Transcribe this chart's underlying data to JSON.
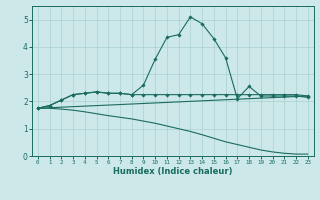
{
  "xlabel": "Humidex (Indice chaleur)",
  "background_color": "#cce8e8",
  "line_color": "#1a6b60",
  "grid_color": "#aad0d0",
  "xlim": [
    -0.5,
    23.5
  ],
  "ylim": [
    0,
    5.5
  ],
  "x_ticks": [
    0,
    1,
    2,
    3,
    4,
    5,
    6,
    7,
    8,
    9,
    10,
    11,
    12,
    13,
    14,
    15,
    16,
    17,
    18,
    19,
    20,
    21,
    22,
    23
  ],
  "y_ticks": [
    0,
    1,
    2,
    3,
    4,
    5
  ],
  "series": [
    {
      "x": [
        0,
        1,
        2,
        3,
        4,
        5,
        6,
        7,
        8,
        9,
        10,
        11,
        12,
        13,
        14,
        15,
        16,
        17,
        18,
        19,
        20,
        21,
        22,
        23
      ],
      "y": [
        1.75,
        1.85,
        2.05,
        2.25,
        2.3,
        2.35,
        2.3,
        2.3,
        2.25,
        2.6,
        3.55,
        4.35,
        4.45,
        5.1,
        4.85,
        4.3,
        3.6,
        2.1,
        2.55,
        2.2,
        2.2,
        2.2,
        2.2,
        2.15
      ],
      "marker": true
    },
    {
      "x": [
        0,
        1,
        2,
        3,
        4,
        5,
        6,
        7,
        8,
        9,
        10,
        11,
        12,
        13,
        14,
        15,
        16,
        17,
        18,
        19,
        20,
        21,
        22,
        23
      ],
      "y": [
        1.75,
        1.85,
        2.05,
        2.25,
        2.3,
        2.35,
        2.3,
        2.3,
        2.25,
        2.25,
        2.25,
        2.25,
        2.25,
        2.25,
        2.25,
        2.25,
        2.25,
        2.25,
        2.25,
        2.25,
        2.25,
        2.25,
        2.25,
        2.2
      ],
      "marker": true
    },
    {
      "x": [
        0,
        23
      ],
      "y": [
        1.75,
        2.2
      ],
      "marker": false
    },
    {
      "x": [
        0,
        1,
        2,
        3,
        4,
        5,
        6,
        7,
        8,
        9,
        10,
        11,
        12,
        13,
        14,
        15,
        16,
        17,
        18,
        19,
        20,
        21,
        22,
        23
      ],
      "y": [
        1.75,
        1.75,
        1.72,
        1.68,
        1.62,
        1.55,
        1.48,
        1.42,
        1.36,
        1.28,
        1.2,
        1.1,
        1.0,
        0.9,
        0.78,
        0.65,
        0.52,
        0.42,
        0.32,
        0.22,
        0.15,
        0.1,
        0.07,
        0.07
      ],
      "marker": false
    }
  ],
  "figsize": [
    3.2,
    2.0
  ],
  "dpi": 100
}
